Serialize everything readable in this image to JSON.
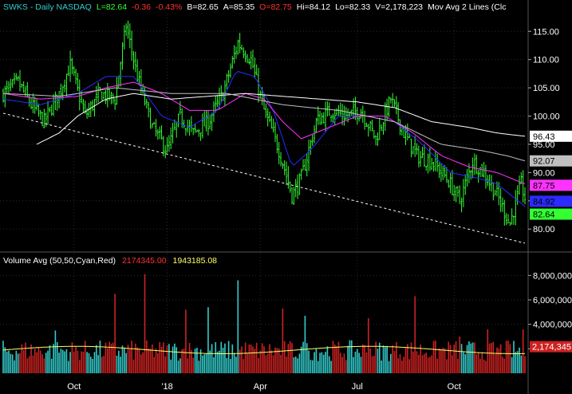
{
  "header": {
    "symbol": "SWKS - Daily  NASDAQ",
    "last": "L=82.64",
    "change": "-0.36",
    "change_pct": "-0.43%",
    "bid": "B=82.65",
    "ask": "A=85.35",
    "open": "O=82.75",
    "high": "Hi=84.12",
    "low": "Lo=82.33",
    "volume": "V=2,178,223",
    "ma_label": "Mov Avg 2 Lines (Clc"
  },
  "volume_header": {
    "label": "Volume Avg (50,50,Cyan,Red)",
    "avg1": "2174345.00",
    "avg2": "1943185.08"
  },
  "colors": {
    "up": "#33ff33",
    "down": "#ff3333",
    "ma_blue": "#2b2bff",
    "ma_magenta": "#ff33ff",
    "ma_white": "#ffffff",
    "ma_gray": "#bfbfbf",
    "trendline": "#ffffff",
    "vol_cyan": "#33cccc",
    "vol_red": "#cc2222",
    "vol_avg": "#ffff66"
  },
  "chart_data": [
    {
      "type": "line",
      "title": "SWKS - Daily NASDAQ",
      "ylim": [
        76.5,
        118
      ],
      "yticks": [
        80,
        85,
        90,
        95,
        100,
        105,
        110,
        115
      ],
      "ytick_labels": [
        "80.00",
        "85.00",
        "90.00",
        "95.00",
        "100.00",
        "105.00",
        "110.00",
        "115.00"
      ],
      "xticks": [
        "Oct",
        "'18",
        "Apr",
        "Jul",
        "Oct"
      ],
      "price_anchors": [
        [
          0,
          104
        ],
        [
          8,
          106
        ],
        [
          15,
          102
        ],
        [
          22,
          99
        ],
        [
          30,
          104
        ],
        [
          36,
          109
        ],
        [
          44,
          100
        ],
        [
          52,
          104
        ],
        [
          60,
          103
        ],
        [
          66,
          116
        ],
        [
          72,
          107
        ],
        [
          80,
          98
        ],
        [
          88,
          94
        ],
        [
          95,
          100
        ],
        [
          102,
          97
        ],
        [
          110,
          99
        ],
        [
          118,
          104
        ],
        [
          126,
          113
        ],
        [
          133,
          110
        ],
        [
          140,
          101
        ],
        [
          148,
          94
        ],
        [
          155,
          86
        ],
        [
          160,
          89
        ],
        [
          168,
          99
        ],
        [
          176,
          101
        ],
        [
          184,
          100
        ],
        [
          192,
          101
        ],
        [
          200,
          96
        ],
        [
          208,
          103
        ],
        [
          215,
          97
        ],
        [
          222,
          93
        ],
        [
          230,
          92
        ],
        [
          238,
          89
        ],
        [
          245,
          85
        ],
        [
          252,
          92
        ],
        [
          258,
          90
        ],
        [
          265,
          86
        ],
        [
          272,
          81
        ],
        [
          278,
          88
        ],
        [
          282,
          83
        ]
      ],
      "series": [
        {
          "name": "price",
          "values_ref": "price_anchors"
        },
        {
          "name": "ma_blue",
          "values": [
            [
              0,
              103
            ],
            [
              20,
              102
            ],
            [
              40,
              104
            ],
            [
              55,
              107
            ],
            [
              70,
              107
            ],
            [
              85,
              100
            ],
            [
              100,
              98
            ],
            [
              115,
              101
            ],
            [
              125,
              108
            ],
            [
              135,
              107
            ],
            [
              145,
              101
            ],
            [
              155,
              91
            ],
            [
              165,
              94
            ],
            [
              180,
              100
            ],
            [
              195,
              100
            ],
            [
              210,
              99
            ],
            [
              225,
              95
            ],
            [
              240,
              90
            ],
            [
              255,
              89
            ],
            [
              265,
              88
            ],
            [
              280,
              84
            ]
          ]
        },
        {
          "name": "ma_magenta",
          "values": [
            [
              0,
              104
            ],
            [
              20,
              103
            ],
            [
              40,
              103.5
            ],
            [
              55,
              105
            ],
            [
              70,
              106
            ],
            [
              85,
              104
            ],
            [
              100,
              101
            ],
            [
              115,
              101
            ],
            [
              130,
              104
            ],
            [
              140,
              103
            ],
            [
              150,
              99
            ],
            [
              160,
              96
            ],
            [
              175,
              98
            ],
            [
              190,
              100
            ],
            [
              205,
              100
            ],
            [
              220,
              97
            ],
            [
              235,
              93
            ],
            [
              250,
              91
            ],
            [
              265,
              90
            ],
            [
              280,
              88
            ]
          ]
        },
        {
          "name": "ma_white",
          "values": [
            [
              18,
              95
            ],
            [
              30,
              97
            ],
            [
              40,
              100
            ],
            [
              55,
              103
            ],
            [
              70,
              104
            ],
            [
              90,
              103
            ],
            [
              110,
              103.5
            ],
            [
              130,
              104
            ],
            [
              150,
              103.5
            ],
            [
              170,
              103
            ],
            [
              190,
              102.5
            ],
            [
              210,
              101.5
            ],
            [
              230,
              99
            ],
            [
              250,
              98
            ],
            [
              265,
              97
            ],
            [
              280,
              96.43
            ]
          ]
        },
        {
          "name": "ma_gray",
          "values": [
            [
              0,
              104
            ],
            [
              30,
              103.5
            ],
            [
              60,
              105
            ],
            [
              90,
              104
            ],
            [
              120,
              104
            ],
            [
              150,
              102
            ],
            [
              180,
              101
            ],
            [
              210,
              99
            ],
            [
              235,
              95
            ],
            [
              255,
              94
            ],
            [
              270,
              93
            ],
            [
              280,
              92.07
            ]
          ]
        }
      ],
      "trendline": {
        "from": [
          0,
          100.5
        ],
        "to": [
          280,
          77.5
        ]
      },
      "price_labels": [
        {
          "text": "96.43",
          "bg": "#ffffff",
          "fg": "#000000",
          "value": 96.43
        },
        {
          "text": "92.07",
          "bg": "#c0c0c0",
          "fg": "#000000",
          "value": 92.07
        },
        {
          "text": "87.75",
          "bg": "#ff33ff",
          "fg": "#000000",
          "value": 87.75
        },
        {
          "text": "84.92",
          "bg": "#2b2bff",
          "fg": "#000000",
          "value": 84.92
        },
        {
          "text": "82.64",
          "bg": "#33ff33",
          "fg": "#000000",
          "value": 82.64
        }
      ]
    },
    {
      "type": "bar",
      "title": "Volume Avg (50,50,Cyan,Red)",
      "ylim": [
        0,
        9000000
      ],
      "yticks": [
        2000000,
        4000000,
        6000000,
        8000000
      ],
      "ytick_labels": [
        "",
        "4,000,000",
        "6,000,000",
        "8,000,000"
      ],
      "avg_label": {
        "text": "2,174,345",
        "value": 2174345
      },
      "spikes": [
        [
          28,
          3500000.0
        ],
        [
          60,
          6500000.0
        ],
        [
          76,
          8100000.0
        ],
        [
          98,
          5200000.0
        ],
        [
          110,
          5400000.0
        ],
        [
          126,
          7600000.0
        ],
        [
          150,
          5300000.0
        ],
        [
          162,
          4700000.0
        ],
        [
          196,
          4500000.0
        ],
        [
          221,
          6300000.0
        ],
        [
          245,
          3000000.0
        ],
        [
          260,
          3600000.0
        ],
        [
          279,
          3600000.0
        ]
      ]
    }
  ]
}
